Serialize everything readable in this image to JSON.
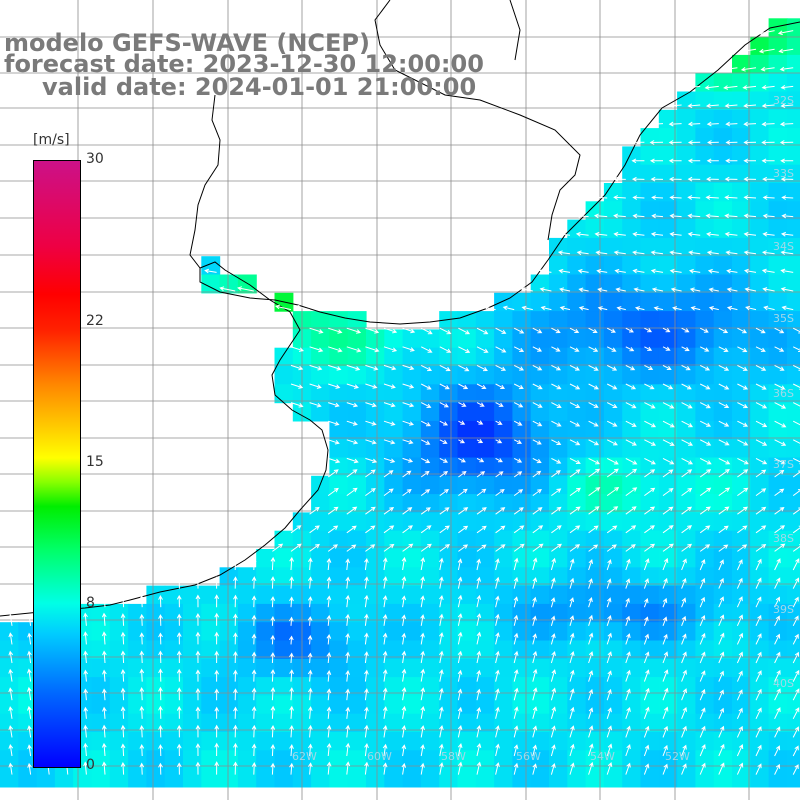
{
  "title": {
    "model": "modelo GEFS-WAVE (NCEP)",
    "forecast": "forecast date: 2023-12-30 12:00:00",
    "valid": "valid date: 2024-01-01 21:00:00"
  },
  "colorbar": {
    "units": "[m/s]",
    "ticks": [
      {
        "label": "30",
        "value": 30
      },
      {
        "label": "22",
        "value": 22
      },
      {
        "label": "15",
        "value": 15
      },
      {
        "label": "8",
        "value": 8
      },
      {
        "label": "0",
        "value": 0
      }
    ],
    "range": [
      0,
      30
    ]
  },
  "latitude_labels": [
    "32S",
    "33S",
    "34S",
    "35S",
    "36S",
    "37S",
    "38S",
    "39S",
    "40S"
  ],
  "longitude_labels": [
    "62W",
    "60W",
    "58W",
    "56W",
    "54W",
    "52W"
  ],
  "colors": {
    "land": "#ffffff",
    "grid": "#8c8c8c",
    "coast": "#000000",
    "arrows": "#ffffff",
    "title_text": "#7a7a7a"
  }
}
